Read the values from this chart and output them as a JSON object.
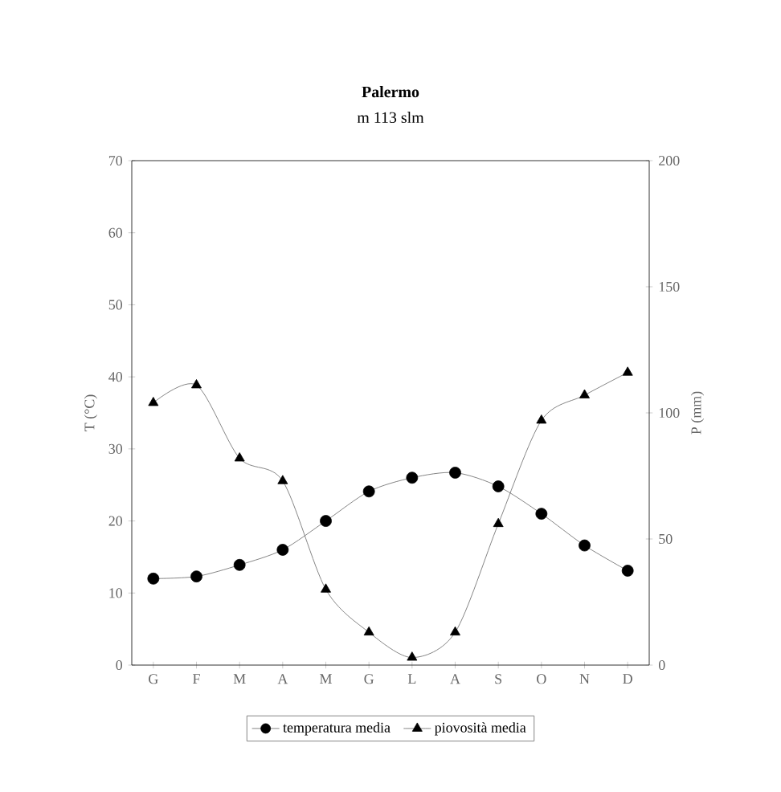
{
  "chart_data": {
    "type": "line",
    "title": "Palermo",
    "subtitle": "m 113 slm",
    "ylabel": "T (°C)",
    "y2label": "P (mm)",
    "categories": [
      "G",
      "F",
      "M",
      "A",
      "M",
      "G",
      "L",
      "A",
      "S",
      "O",
      "N",
      "D"
    ],
    "series": [
      {
        "name": "temperatura media",
        "color": "#000000",
        "marker": "circle",
        "values": [
          12,
          12.3,
          13.9,
          16,
          20,
          24.1,
          26,
          26.7,
          24.8,
          21,
          16.6,
          13.1
        ]
      },
      {
        "name": "piovosità media",
        "color": "#000000",
        "marker": "triangle",
        "axis": "y2",
        "values": [
          104,
          111,
          82,
          73,
          30,
          13,
          3,
          13,
          56,
          97,
          107,
          116
        ]
      }
    ],
    "ylim": [
      0,
      70
    ],
    "yticks": [
      0,
      10,
      20,
      30,
      40,
      50,
      60,
      70
    ],
    "y2lim": [
      0,
      200
    ],
    "y2ticks": [
      0,
      50,
      100,
      150,
      200
    ],
    "grid": false,
    "legend": "bottom",
    "line_style": "solid"
  }
}
